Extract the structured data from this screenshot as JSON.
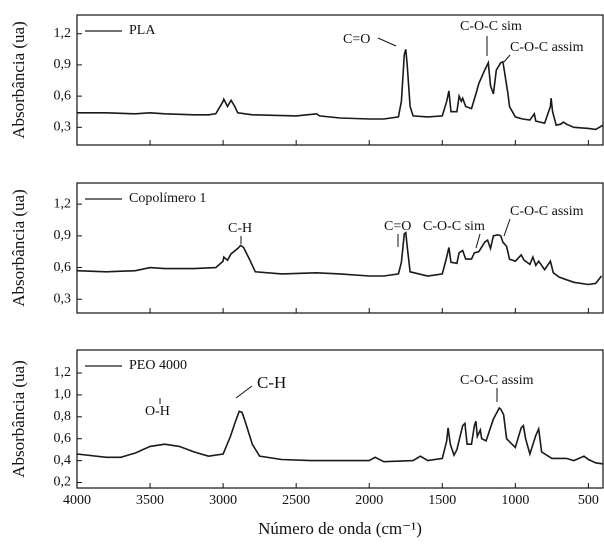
{
  "chart_data": [
    {
      "type": "line",
      "y_label": "Absorbância (ua)",
      "legend": "upper left",
      "xlim": [
        4000,
        400
      ],
      "ylim": [
        0.13,
        1.38
      ],
      "yticks": [
        {
          "value": 0.3,
          "label": "0,3"
        },
        {
          "value": 0.6,
          "label": "0,6"
        },
        {
          "value": 0.9,
          "label": "0,9"
        },
        {
          "value": 1.2,
          "label": "1,2"
        }
      ],
      "annotations": [
        "C=O",
        "C-O-C sim",
        "C-O-C assim"
      ],
      "series": [
        {
          "name": "PLA",
          "color": "#1a1a1a",
          "x": [
            4000,
            3800,
            3600,
            3500,
            3400,
            3200,
            3100,
            3050,
            3000,
            2995,
            2970,
            2945,
            2920,
            2900,
            2800,
            2500,
            2360,
            2340,
            2200,
            2000,
            1900,
            1800,
            1780,
            1760,
            1750,
            1740,
            1720,
            1700,
            1600,
            1500,
            1470,
            1455,
            1440,
            1400,
            1385,
            1370,
            1360,
            1340,
            1300,
            1270,
            1250,
            1210,
            1185,
            1180,
            1170,
            1150,
            1130,
            1100,
            1085,
            1050,
            1040,
            1000,
            950,
            900,
            870,
            860,
            800,
            760,
            755,
            745,
            720,
            690,
            670,
            650,
            600,
            500,
            450,
            400
          ],
          "values": [
            0.44,
            0.44,
            0.43,
            0.44,
            0.43,
            0.42,
            0.42,
            0.43,
            0.55,
            0.57,
            0.5,
            0.56,
            0.5,
            0.44,
            0.42,
            0.41,
            0.43,
            0.41,
            0.39,
            0.38,
            0.38,
            0.4,
            0.55,
            1.0,
            1.05,
            0.9,
            0.5,
            0.41,
            0.4,
            0.41,
            0.55,
            0.65,
            0.45,
            0.45,
            0.6,
            0.55,
            0.58,
            0.5,
            0.48,
            0.62,
            0.72,
            0.85,
            0.92,
            0.85,
            0.7,
            0.62,
            0.85,
            0.92,
            0.93,
            0.62,
            0.5,
            0.4,
            0.38,
            0.37,
            0.43,
            0.36,
            0.34,
            0.5,
            0.58,
            0.45,
            0.32,
            0.33,
            0.35,
            0.33,
            0.3,
            0.29,
            0.28,
            0.32
          ]
        }
      ]
    },
    {
      "type": "line",
      "y_label": "Absorbância (ua)",
      "legend": "upper left",
      "xlim": [
        4000,
        400
      ],
      "ylim": [
        0.17,
        1.4
      ],
      "yticks": [
        {
          "value": 0.3,
          "label": "0,3"
        },
        {
          "value": 0.6,
          "label": "0,6"
        },
        {
          "value": 0.9,
          "label": "0,9"
        },
        {
          "value": 1.2,
          "label": "1,2"
        }
      ],
      "annotations": [
        "C-H",
        "C=O",
        "C-O-C sim",
        "C-O-C assim"
      ],
      "series": [
        {
          "name": "Copolímero 1",
          "color": "#1a1a1a",
          "x": [
            4000,
            3800,
            3600,
            3500,
            3400,
            3200,
            3050,
            3000,
            2995,
            2970,
            2945,
            2900,
            2880,
            2860,
            2820,
            2780,
            2600,
            2360,
            2200,
            2000,
            1900,
            1800,
            1780,
            1760,
            1750,
            1740,
            1720,
            1600,
            1500,
            1470,
            1455,
            1440,
            1400,
            1385,
            1360,
            1340,
            1300,
            1280,
            1250,
            1210,
            1190,
            1170,
            1150,
            1120,
            1100,
            1085,
            1060,
            1040,
            1000,
            960,
            940,
            900,
            880,
            860,
            840,
            800,
            760,
            740,
            700,
            600,
            500,
            450,
            410
          ],
          "values": [
            0.57,
            0.56,
            0.57,
            0.6,
            0.59,
            0.59,
            0.6,
            0.66,
            0.7,
            0.67,
            0.73,
            0.78,
            0.81,
            0.79,
            0.68,
            0.56,
            0.54,
            0.55,
            0.54,
            0.52,
            0.52,
            0.54,
            0.65,
            0.92,
            0.93,
            0.8,
            0.56,
            0.52,
            0.54,
            0.7,
            0.79,
            0.65,
            0.64,
            0.74,
            0.76,
            0.68,
            0.68,
            0.74,
            0.75,
            0.84,
            0.86,
            0.78,
            0.9,
            0.91,
            0.9,
            0.84,
            0.8,
            0.68,
            0.66,
            0.72,
            0.67,
            0.63,
            0.7,
            0.62,
            0.66,
            0.58,
            0.66,
            0.55,
            0.51,
            0.46,
            0.44,
            0.45,
            0.52
          ]
        }
      ]
    },
    {
      "type": "line",
      "y_label": "Absorbância (ua)",
      "x_label": "Número de onda (cm⁻¹)",
      "legend": "upper left",
      "xlim": [
        4000,
        400
      ],
      "ylim": [
        0.15,
        1.41
      ],
      "xticks": [
        4000,
        3500,
        3000,
        2500,
        2000,
        1500,
        1000,
        500
      ],
      "yticks": [
        {
          "value": 0.2,
          "label": "0,2"
        },
        {
          "value": 0.4,
          "label": "0,4"
        },
        {
          "value": 0.6,
          "label": "0,6"
        },
        {
          "value": 0.8,
          "label": "0,8"
        },
        {
          "value": 1.0,
          "label": "1,0"
        },
        {
          "value": 1.2,
          "label": "1,2"
        }
      ],
      "annotations": [
        "O-H",
        "C-H",
        "C-O-C assim"
      ],
      "series": [
        {
          "name": "PEO 4000",
          "color": "#1a1a1a",
          "x": [
            4000,
            3800,
            3700,
            3600,
            3500,
            3400,
            3300,
            3200,
            3100,
            3000,
            2950,
            2920,
            2890,
            2870,
            2840,
            2800,
            2750,
            2600,
            2400,
            2200,
            2000,
            1960,
            1900,
            1700,
            1650,
            1600,
            1500,
            1470,
            1460,
            1445,
            1420,
            1400,
            1360,
            1345,
            1330,
            1300,
            1280,
            1270,
            1260,
            1240,
            1230,
            1200,
            1150,
            1110,
            1100,
            1080,
            1060,
            1000,
            960,
            945,
            930,
            900,
            860,
            840,
            820,
            750,
            650,
            600,
            530,
            500,
            450,
            400
          ],
          "values": [
            0.46,
            0.43,
            0.43,
            0.47,
            0.53,
            0.55,
            0.53,
            0.48,
            0.44,
            0.46,
            0.62,
            0.74,
            0.85,
            0.84,
            0.72,
            0.55,
            0.44,
            0.41,
            0.4,
            0.4,
            0.4,
            0.43,
            0.39,
            0.4,
            0.44,
            0.4,
            0.42,
            0.58,
            0.7,
            0.55,
            0.45,
            0.5,
            0.72,
            0.74,
            0.55,
            0.55,
            0.72,
            0.76,
            0.62,
            0.68,
            0.6,
            0.58,
            0.78,
            0.88,
            0.87,
            0.82,
            0.6,
            0.52,
            0.7,
            0.72,
            0.6,
            0.46,
            0.63,
            0.69,
            0.48,
            0.42,
            0.42,
            0.4,
            0.44,
            0.41,
            0.38,
            0.37
          ]
        }
      ]
    }
  ]
}
